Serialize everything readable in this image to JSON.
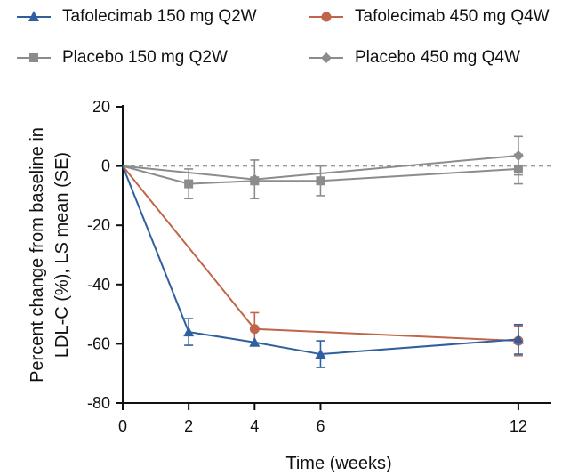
{
  "chart_data": {
    "type": "line",
    "title": "",
    "xlabel": "Time (weeks)",
    "ylabel_lines": [
      "Percent change from baseline in",
      "LDL-C (%), LS mean (SE)"
    ],
    "x": [
      0,
      2,
      4,
      6,
      12
    ],
    "xticks": [
      0,
      2,
      4,
      6,
      12
    ],
    "yticks": [
      20,
      0,
      -20,
      -40,
      -60,
      -80
    ],
    "xlim": [
      0,
      13
    ],
    "ylim": [
      -80,
      20
    ],
    "reference_line": 0,
    "legend_position": "top",
    "series": [
      {
        "name": "Tafolecimab 150 mg Q2W",
        "color": "#2f5f9e",
        "marker": "triangle",
        "x": [
          0,
          2,
          4,
          6,
          12
        ],
        "values": [
          0,
          -56,
          -59.5,
          -63.5,
          -58.5
        ],
        "errors": [
          0,
          4.5,
          null,
          4.5,
          5
        ]
      },
      {
        "name": "Tafolecimab 450 mg Q4W",
        "color": "#c0654a",
        "marker": "circle",
        "x": [
          0,
          4,
          12
        ],
        "values": [
          0,
          -55,
          -59
        ],
        "errors": [
          0,
          5.5,
          5
        ]
      },
      {
        "name": "Placebo 150 mg Q2W",
        "color": "#8c8c8c",
        "marker": "square",
        "x": [
          0,
          2,
          4,
          6,
          12
        ],
        "values": [
          0,
          -6,
          -5,
          -5,
          -1
        ],
        "errors": [
          0,
          5,
          null,
          5,
          5
        ]
      },
      {
        "name": "Placebo 450 mg Q4W",
        "color": "#8c8c8c",
        "marker": "diamond",
        "x": [
          0,
          4,
          12
        ],
        "values": [
          0,
          -4.5,
          3.5
        ],
        "errors": [
          0,
          6.5,
          6.5
        ]
      }
    ]
  }
}
